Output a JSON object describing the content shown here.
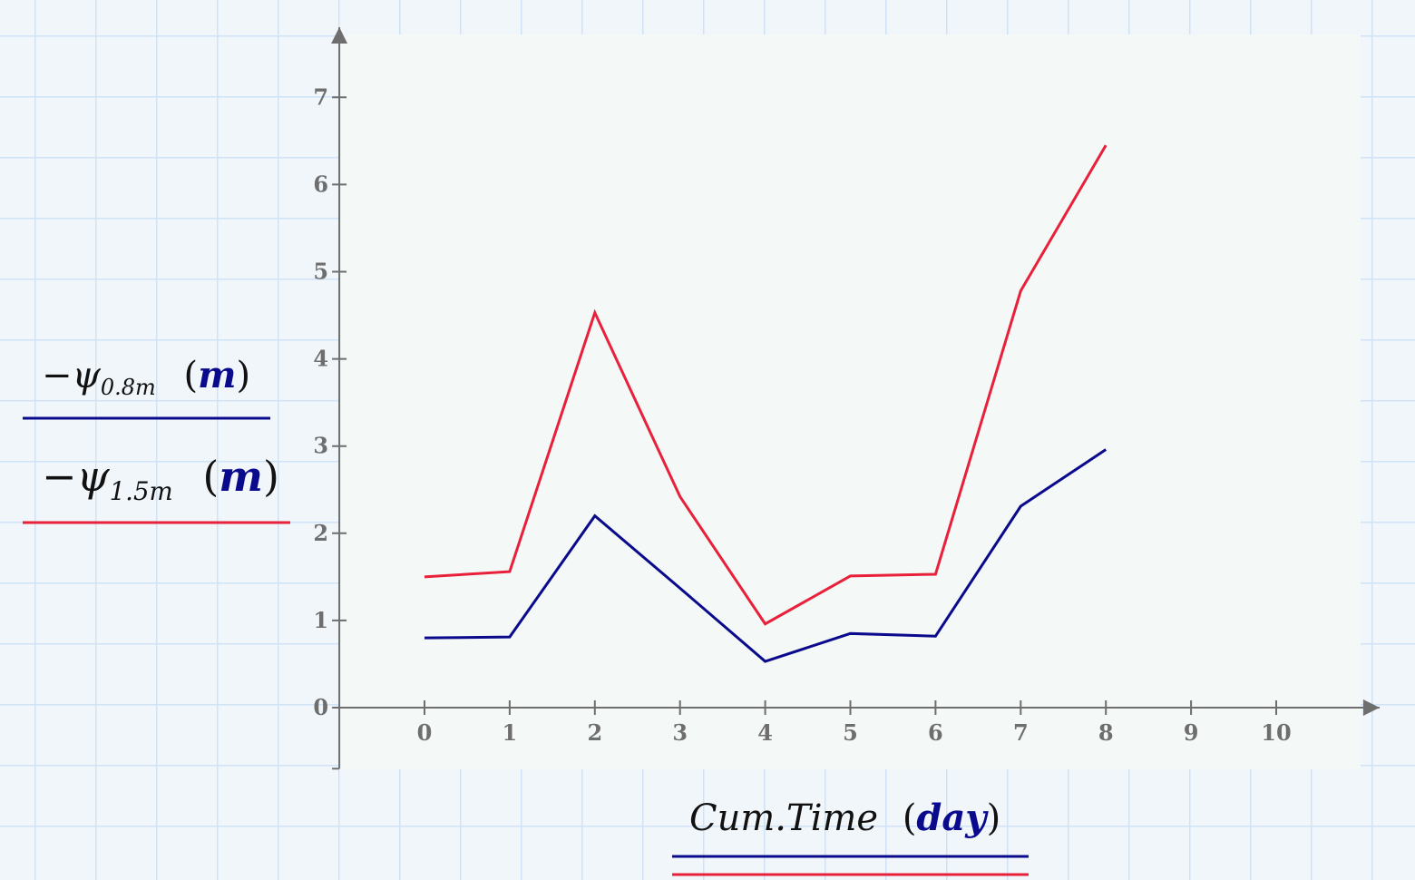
{
  "chart_data": {
    "type": "line",
    "x": [
      0,
      1,
      2,
      3,
      4,
      5,
      6,
      7,
      8
    ],
    "series": [
      {
        "name": "−ψ0.8m",
        "color": "#0a0a8c",
        "values": [
          0.8,
          0.81,
          2.2,
          1.37,
          0.53,
          0.85,
          0.82,
          2.31,
          2.96
        ]
      },
      {
        "name": "−ψ1.5m",
        "color": "#e8203a",
        "values": [
          1.5,
          1.56,
          4.53,
          2.42,
          0.96,
          1.51,
          1.53,
          4.78,
          6.45
        ]
      }
    ],
    "xlim": [
      -1,
      11
    ],
    "ylim": [
      -0.7,
      7.7
    ],
    "xticks": [
      "0",
      "1",
      "2",
      "3",
      "4",
      "5",
      "6",
      "7",
      "8",
      "9",
      "10"
    ],
    "yticks": [
      "0",
      "1",
      "2",
      "3",
      "4",
      "5",
      "6",
      "7"
    ],
    "xlabel": {
      "var": "Cum.Time",
      "unit": "day"
    },
    "ylabels": [
      {
        "sign": "−",
        "var": "ψ",
        "sub": "0.8m",
        "unit": "m",
        "color": "#0a0a8c"
      },
      {
        "sign": "−",
        "var": "ψ",
        "sub": "1.5m",
        "unit": "m",
        "color": "#e8203a"
      }
    ],
    "axis_color": "#6e6e6e"
  }
}
